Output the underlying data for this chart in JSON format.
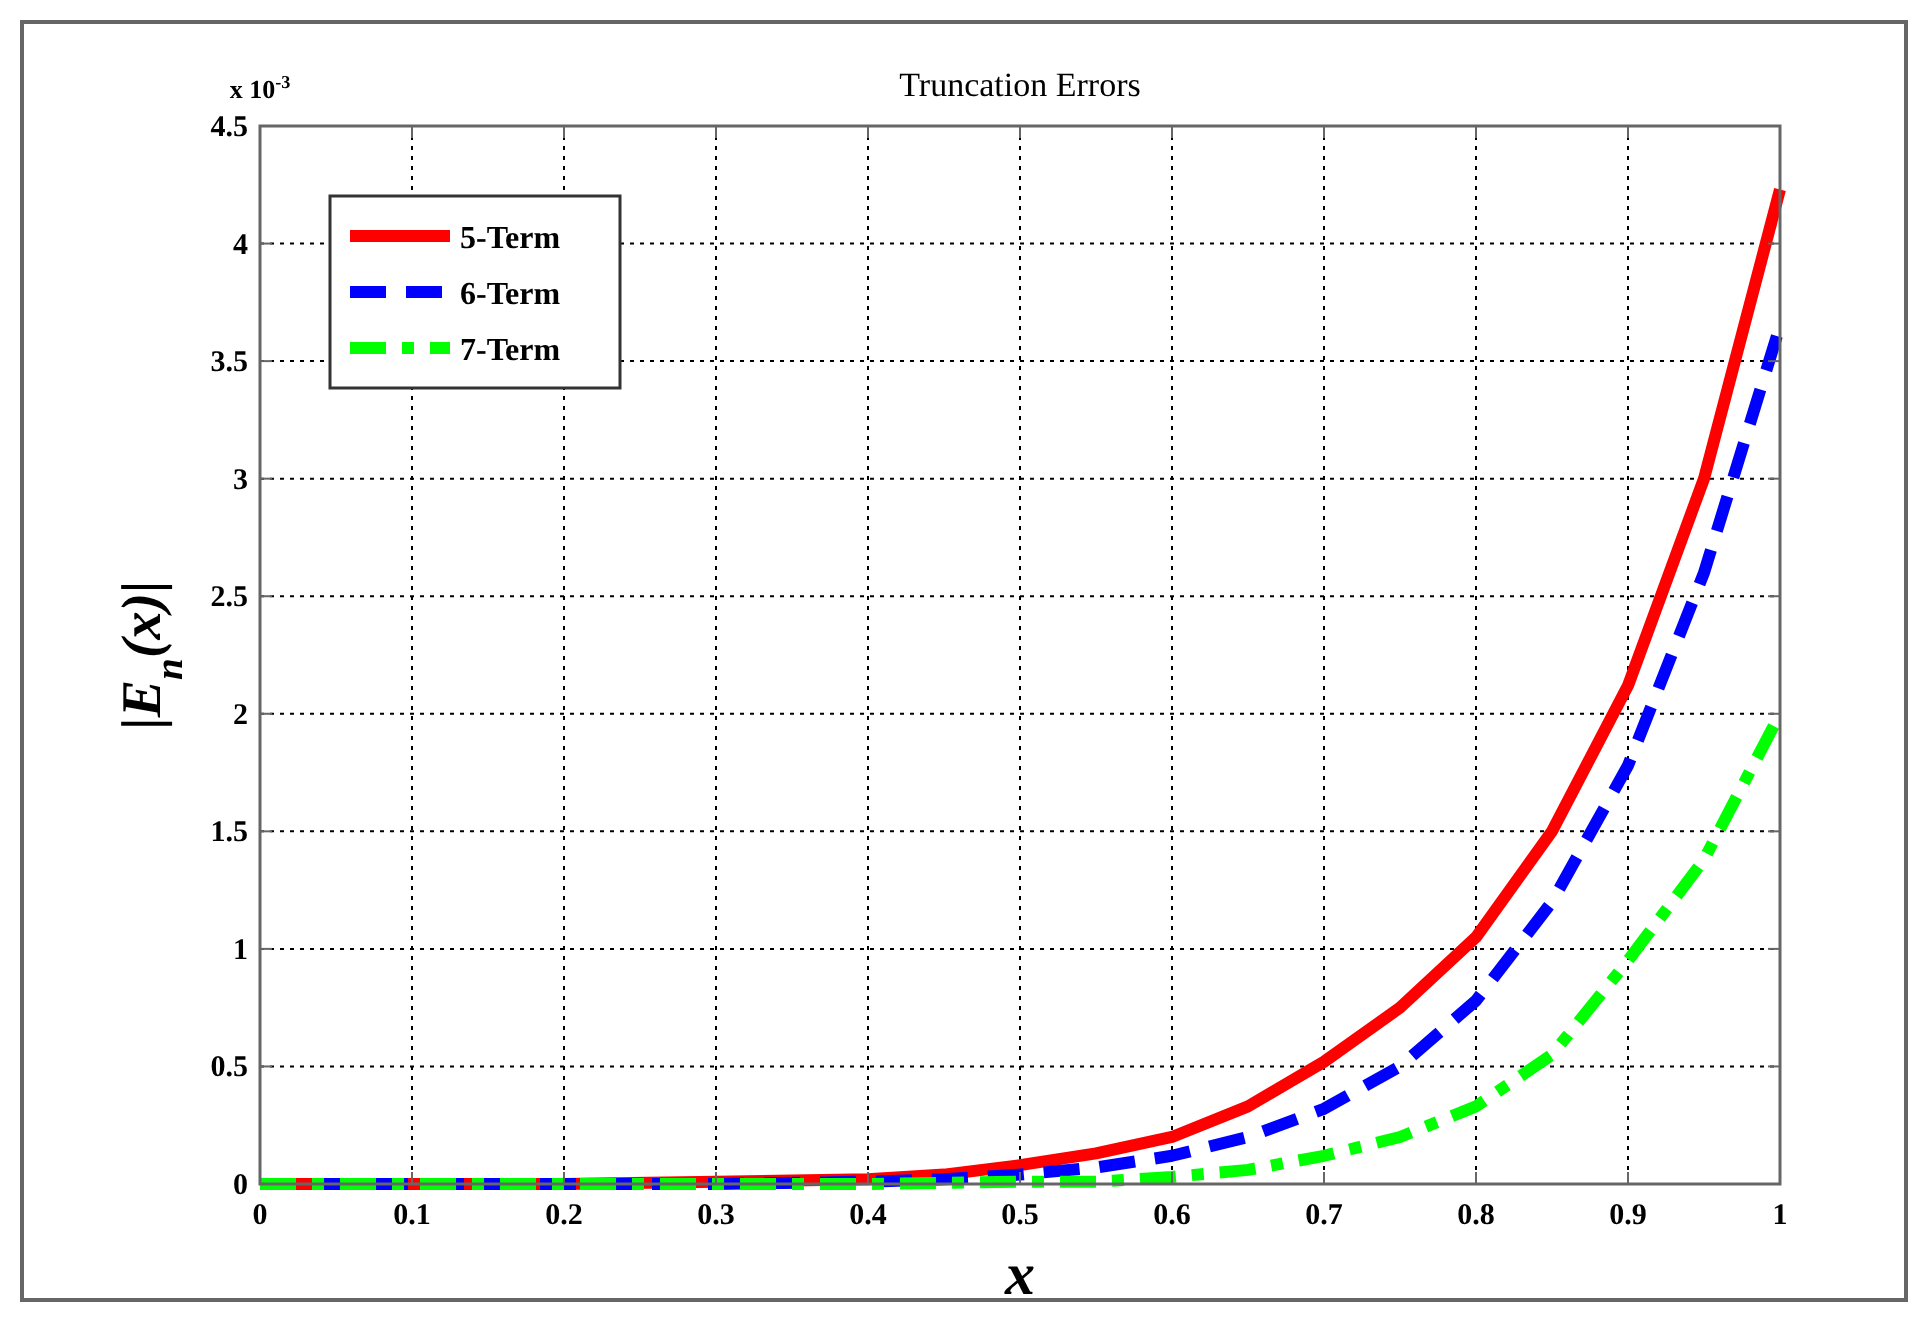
{
  "chart_data": {
    "type": "line",
    "title": "Truncation Errors",
    "xlabel": "x",
    "ylabel": "|E$_{n}$(x)|",
    "annotations": [
      "x 10$^{-3}$"
    ],
    "xlim": [
      0,
      1
    ],
    "xticks": [
      0,
      0.1,
      0.2,
      0.3,
      0.4,
      0.5,
      0.6,
      0.7,
      0.8,
      0.9,
      1
    ],
    "ylim": [
      0,
      4.5
    ],
    "yticks": [
      0,
      0.5,
      1,
      1.5,
      2,
      2.5,
      3,
      3.5,
      4,
      4.5
    ],
    "grid": true,
    "legend": "top left",
    "series": [
      {
        "name": "5-Term",
        "color": "#ff0000",
        "line_style": "solid",
        "x": [
          0,
          0.1,
          0.2,
          0.3,
          0.4,
          0.45,
          0.5,
          0.55,
          0.6,
          0.65,
          0.7,
          0.75,
          0.8,
          0.85,
          0.9,
          0.95,
          1
        ],
        "values": [
          0,
          0,
          0,
          0.01,
          0.02,
          0.04,
          0.08,
          0.13,
          0.2,
          0.33,
          0.52,
          0.75,
          1.05,
          1.5,
          2.12,
          3.0,
          4.23
        ]
      },
      {
        "name": "6-Term",
        "color": "#0000ff",
        "line_style": "dashed",
        "x": [
          0,
          0.1,
          0.2,
          0.3,
          0.4,
          0.45,
          0.5,
          0.55,
          0.6,
          0.65,
          0.7,
          0.75,
          0.8,
          0.85,
          0.9,
          0.95,
          1
        ],
        "values": [
          0,
          0,
          0,
          0,
          0.01,
          0.02,
          0.04,
          0.07,
          0.12,
          0.2,
          0.32,
          0.5,
          0.78,
          1.2,
          1.78,
          2.6,
          3.65
        ]
      },
      {
        "name": "7-Term",
        "color": "#00ff00",
        "line_style": "dashdot",
        "x": [
          0,
          0.1,
          0.2,
          0.3,
          0.4,
          0.5,
          0.55,
          0.6,
          0.65,
          0.7,
          0.75,
          0.8,
          0.85,
          0.9,
          0.95,
          1
        ],
        "values": [
          0,
          0,
          0,
          0,
          0,
          0.01,
          0.01,
          0.03,
          0.06,
          0.12,
          0.2,
          0.33,
          0.55,
          0.95,
          1.38,
          2.0
        ]
      }
    ]
  }
}
